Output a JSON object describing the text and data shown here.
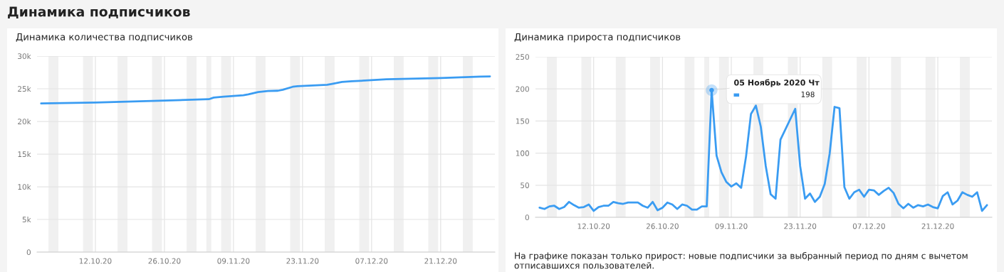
{
  "chart_data": [
    {
      "type": "line",
      "title": "Динамика количества подписчиков",
      "annotations": [
        "Динамика подписчиков"
      ],
      "series": [
        {
          "color": "#3a9cf2",
          "x": [
            "2020-10-01",
            "2020-10-12",
            "2020-10-26",
            "2020-11-04",
            "2020-11-05",
            "2020-11-07",
            "2020-11-10",
            "2020-11-11",
            "2020-11-12",
            "2020-11-14",
            "2020-11-16",
            "2020-11-18",
            "2020-11-19",
            "2020-11-21",
            "2020-11-22",
            "2020-11-25",
            "2020-11-28",
            "2020-11-29",
            "2020-12-01",
            "2020-12-03",
            "2020-12-10",
            "2020-12-21",
            "2020-12-29",
            "2020-12-31"
          ],
          "values": [
            22750,
            22900,
            23200,
            23400,
            23650,
            23800,
            23950,
            24000,
            24150,
            24500,
            24650,
            24700,
            24850,
            25300,
            25400,
            25500,
            25600,
            25750,
            26050,
            26150,
            26450,
            26650,
            26850,
            26900
          ]
        }
      ],
      "xlim": [
        "2020-09-30T04:00",
        "2021-01-01T00:00"
      ],
      "xticks": [
        {
          "value": "2020-10-12",
          "label": "12.10.20"
        },
        {
          "value": "2020-10-26",
          "label": "26.10.20"
        },
        {
          "value": "2020-11-09",
          "label": "09.11.20"
        },
        {
          "value": "2020-11-23",
          "label": "23.11.20"
        },
        {
          "value": "2020-12-07",
          "label": "07.12.20"
        },
        {
          "value": "2020-12-21",
          "label": "21.12.20"
        }
      ],
      "ylim": [
        0,
        30000
      ],
      "yticks": [
        {
          "value": 0,
          "label": "0"
        },
        {
          "value": 5000,
          "label": "5k"
        },
        {
          "value": 10000,
          "label": "10k"
        },
        {
          "value": 15000,
          "label": "15k"
        },
        {
          "value": 20000,
          "label": "20k"
        },
        {
          "value": 25000,
          "label": "25k"
        },
        {
          "value": 30000,
          "label": "30k"
        }
      ],
      "grid": true,
      "bands": [
        {
          "axis": "x",
          "from": "2020-10-02T12:00",
          "to": "2020-10-04T12:00",
          "color": "#f0f0f0"
        },
        {
          "axis": "x",
          "from": "2020-10-09T12:00",
          "to": "2020-10-11T12:00",
          "color": "#f0f0f0"
        },
        {
          "axis": "x",
          "from": "2020-10-16T12:00",
          "to": "2020-10-18T12:00",
          "color": "#f0f0f0"
        },
        {
          "axis": "x",
          "from": "2020-10-23T12:00",
          "to": "2020-10-25T12:00",
          "color": "#f0f0f0"
        },
        {
          "axis": "x",
          "from": "2020-10-30T12:00",
          "to": "2020-11-01T12:00",
          "color": "#f0f0f0"
        },
        {
          "axis": "x",
          "from": "2020-11-03T12:00",
          "to": "2020-11-04T12:00",
          "color": "#f0f0f0"
        },
        {
          "axis": "x",
          "from": "2020-11-06T12:00",
          "to": "2020-11-08T12:00",
          "color": "#f0f0f0"
        },
        {
          "axis": "x",
          "from": "2020-11-13T12:00",
          "to": "2020-11-15T12:00",
          "color": "#f0f0f0"
        },
        {
          "axis": "x",
          "from": "2020-11-20T12:00",
          "to": "2020-11-22T12:00",
          "color": "#f0f0f0"
        },
        {
          "axis": "x",
          "from": "2020-11-27T12:00",
          "to": "2020-11-29T12:00",
          "color": "#f0f0f0"
        },
        {
          "axis": "x",
          "from": "2020-12-04T12:00",
          "to": "2020-12-06T12:00",
          "color": "#f0f0f0"
        },
        {
          "axis": "x",
          "from": "2020-12-11T12:00",
          "to": "2020-12-13T12:00",
          "color": "#f0f0f0"
        },
        {
          "axis": "x",
          "from": "2020-12-18T12:00",
          "to": "2020-12-20T12:00",
          "color": "#f0f0f0"
        },
        {
          "axis": "x",
          "from": "2020-12-25T12:00",
          "to": "2020-12-27T12:00",
          "color": "#f0f0f0"
        }
      ]
    },
    {
      "type": "line",
      "title": "Динамика прироста подписчиков",
      "annotations": [
        {
          "text": "05 Ноябрь 2020 Чт",
          "x": "2020-11-05",
          "y": 198
        },
        "198",
        "На графике показан только прирост: новые подписчики за выбранный период по дням с вычетом отписавшихся пользователей."
      ],
      "series": [
        {
          "color": "#3a9cf2",
          "x": [
            "2020-10-01",
            "2020-10-02",
            "2020-10-03",
            "2020-10-04",
            "2020-10-05",
            "2020-10-06",
            "2020-10-07",
            "2020-10-08",
            "2020-10-09",
            "2020-10-10",
            "2020-10-11",
            "2020-10-12",
            "2020-10-13",
            "2020-10-14",
            "2020-10-15",
            "2020-10-16",
            "2020-10-17",
            "2020-10-18",
            "2020-10-19",
            "2020-10-20",
            "2020-10-21",
            "2020-10-22",
            "2020-10-23",
            "2020-10-24",
            "2020-10-25",
            "2020-10-26",
            "2020-10-27",
            "2020-10-28",
            "2020-10-29",
            "2020-10-30",
            "2020-10-31",
            "2020-11-01",
            "2020-11-02",
            "2020-11-03",
            "2020-11-04",
            "2020-11-05",
            "2020-11-06",
            "2020-11-07",
            "2020-11-08",
            "2020-11-09",
            "2020-11-10",
            "2020-11-11",
            "2020-11-12",
            "2020-11-13",
            "2020-11-14",
            "2020-11-15",
            "2020-11-16",
            "2020-11-17",
            "2020-11-18",
            "2020-11-19",
            "2020-11-20",
            "2020-11-21",
            "2020-11-22",
            "2020-11-23",
            "2020-11-24",
            "2020-11-25",
            "2020-11-26",
            "2020-11-27",
            "2020-11-28",
            "2020-11-29",
            "2020-11-30",
            "2020-12-01",
            "2020-12-02",
            "2020-12-03",
            "2020-12-04",
            "2020-12-05",
            "2020-12-06",
            "2020-12-07",
            "2020-12-08",
            "2020-12-09",
            "2020-12-10",
            "2020-12-11",
            "2020-12-12",
            "2020-12-13",
            "2020-12-14",
            "2020-12-15",
            "2020-12-16",
            "2020-12-17",
            "2020-12-18",
            "2020-12-19",
            "2020-12-20",
            "2020-12-21",
            "2020-12-22",
            "2020-12-23",
            "2020-12-24",
            "2020-12-25",
            "2020-12-26",
            "2020-12-27",
            "2020-12-28",
            "2020-12-29",
            "2020-12-30",
            "2020-12-31"
          ],
          "values": [
            15,
            13,
            17,
            18,
            13,
            16,
            24,
            19,
            15,
            16,
            20,
            10,
            16,
            18,
            18,
            24,
            22,
            21,
            23,
            23,
            23,
            18,
            15,
            24,
            11,
            15,
            23,
            20,
            13,
            20,
            18,
            12,
            12,
            17,
            17,
            198,
            96,
            70,
            55,
            48,
            53,
            46,
            95,
            161,
            174,
            141,
            80,
            36,
            29,
            121,
            null,
            null,
            169,
            80,
            29,
            37,
            24,
            32,
            52,
            99,
            172,
            170,
            47,
            29,
            39,
            43,
            32,
            43,
            42,
            35,
            41,
            46,
            38,
            21,
            14,
            21,
            15,
            19,
            17,
            20,
            16,
            14,
            33,
            39,
            20,
            26,
            39,
            35,
            32,
            39,
            10,
            19
          ]
        }
      ],
      "xlim": [
        "2020-09-30T04:00",
        "2021-01-01T00:00"
      ],
      "xticks": [
        {
          "value": "2020-10-12",
          "label": "12.10.20"
        },
        {
          "value": "2020-10-26",
          "label": "26.10.20"
        },
        {
          "value": "2020-11-09",
          "label": "09.11.20"
        },
        {
          "value": "2020-11-23",
          "label": "23.11.20"
        },
        {
          "value": "2020-12-07",
          "label": "07.12.20"
        },
        {
          "value": "2020-12-21",
          "label": "21.12.20"
        }
      ],
      "ylim": [
        0,
        250
      ],
      "yticks": [
        0,
        50,
        100,
        150,
        200,
        250
      ],
      "grid": true,
      "bands": [
        {
          "axis": "x",
          "from": "2020-10-02T12:00",
          "to": "2020-10-04T12:00",
          "color": "#f0f0f0"
        },
        {
          "axis": "x",
          "from": "2020-10-09T12:00",
          "to": "2020-10-11T12:00",
          "color": "#f0f0f0"
        },
        {
          "axis": "x",
          "from": "2020-10-16T12:00",
          "to": "2020-10-18T12:00",
          "color": "#f0f0f0"
        },
        {
          "axis": "x",
          "from": "2020-10-23T12:00",
          "to": "2020-10-25T12:00",
          "color": "#f0f0f0"
        },
        {
          "axis": "x",
          "from": "2020-10-30T12:00",
          "to": "2020-11-01T12:00",
          "color": "#f0f0f0"
        },
        {
          "axis": "x",
          "from": "2020-11-03T12:00",
          "to": "2020-11-04T12:00",
          "color": "#f0f0f0"
        },
        {
          "axis": "x",
          "from": "2020-11-06T12:00",
          "to": "2020-11-08T12:00",
          "color": "#f0f0f0"
        },
        {
          "axis": "x",
          "from": "2020-11-13T12:00",
          "to": "2020-11-15T12:00",
          "color": "#f0f0f0"
        },
        {
          "axis": "x",
          "from": "2020-11-20T12:00",
          "to": "2020-11-22T12:00",
          "color": "#f0f0f0"
        },
        {
          "axis": "x",
          "from": "2020-11-27T12:00",
          "to": "2020-11-29T12:00",
          "color": "#f0f0f0"
        },
        {
          "axis": "x",
          "from": "2020-12-04T12:00",
          "to": "2020-12-06T12:00",
          "color": "#f0f0f0"
        },
        {
          "axis": "x",
          "from": "2020-12-11T12:00",
          "to": "2020-12-13T12:00",
          "color": "#f0f0f0"
        },
        {
          "axis": "x",
          "from": "2020-12-18T12:00",
          "to": "2020-12-20T12:00",
          "color": "#f0f0f0"
        },
        {
          "axis": "x",
          "from": "2020-12-25T12:00",
          "to": "2020-12-27T12:00",
          "color": "#f0f0f0"
        }
      ]
    }
  ]
}
